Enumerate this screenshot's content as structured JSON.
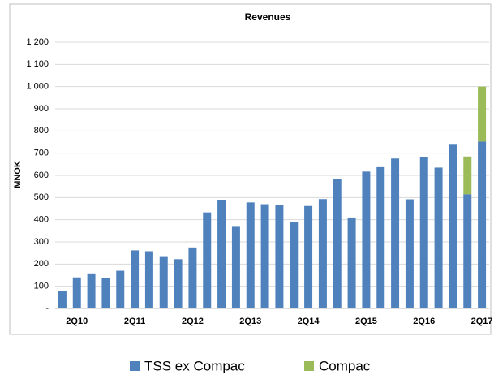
{
  "chart_data": {
    "type": "stacked-bar",
    "title": "Revenues",
    "y_label": "MNOK",
    "categories": [
      null,
      "2Q10",
      null,
      null,
      null,
      "2Q11",
      null,
      null,
      null,
      "2Q12",
      null,
      null,
      null,
      "2Q13",
      null,
      null,
      null,
      "2Q14",
      null,
      null,
      null,
      "2Q15",
      null,
      null,
      null,
      "2Q16",
      null,
      null,
      null,
      "2Q17"
    ],
    "series": [
      {
        "name": "TSS ex Compac",
        "color": "#4f81bd",
        "values": [
          80,
          140,
          158,
          138,
          170,
          262,
          258,
          232,
          222,
          275,
          433,
          490,
          368,
          478,
          470,
          467,
          390,
          462,
          493,
          583,
          410,
          617,
          637,
          676,
          492,
          682,
          635,
          738,
          515,
          752
        ]
      },
      {
        "name": "Compac",
        "color": "#9bbb59",
        "values": [
          null,
          null,
          null,
          null,
          null,
          null,
          null,
          null,
          null,
          null,
          null,
          null,
          null,
          null,
          null,
          null,
          null,
          null,
          null,
          null,
          null,
          null,
          null,
          null,
          null,
          null,
          null,
          null,
          170,
          248
        ]
      }
    ],
    "ylim": [
      0,
      1200
    ],
    "yticks": [
      {
        "value": 0,
        "label": "-"
      },
      100,
      200,
      300,
      400,
      500,
      600,
      700,
      800,
      900,
      {
        "value": 1000,
        "label": "1 000"
      },
      {
        "value": 1100,
        "label": "1 100"
      },
      {
        "value": 1200,
        "label": "1 200"
      }
    ],
    "grid": true,
    "legend": "bottom"
  }
}
